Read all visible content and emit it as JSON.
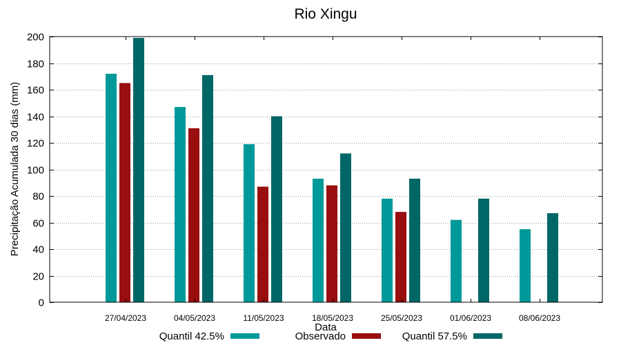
{
  "chart_data": {
    "type": "bar",
    "title": "Rio Xingu",
    "xlabel": "Data",
    "ylabel": "Precipitação Acumulada 30 dias (mm)",
    "ylim": [
      0,
      200
    ],
    "yticks": [
      0,
      20,
      40,
      60,
      80,
      100,
      120,
      140,
      160,
      180,
      200
    ],
    "grid": true,
    "legend_position": "bottom",
    "categories": [
      "27/04/2023",
      "04/05/2023",
      "11/05/2023",
      "18/05/2023",
      "25/05/2023",
      "01/06/2023",
      "08/06/2023"
    ],
    "series": [
      {
        "name": "Quantil 42.5%",
        "color": "#009999",
        "values": [
          172,
          147,
          119,
          93,
          78,
          62,
          55
        ]
      },
      {
        "name": "Observado",
        "color": "#990f0f",
        "values": [
          165,
          131,
          87,
          88,
          68,
          null,
          null
        ]
      },
      {
        "name": "Quantil 57.5%",
        "color": "#006666",
        "values": [
          199,
          171,
          140,
          112,
          93,
          78,
          67
        ]
      }
    ]
  }
}
